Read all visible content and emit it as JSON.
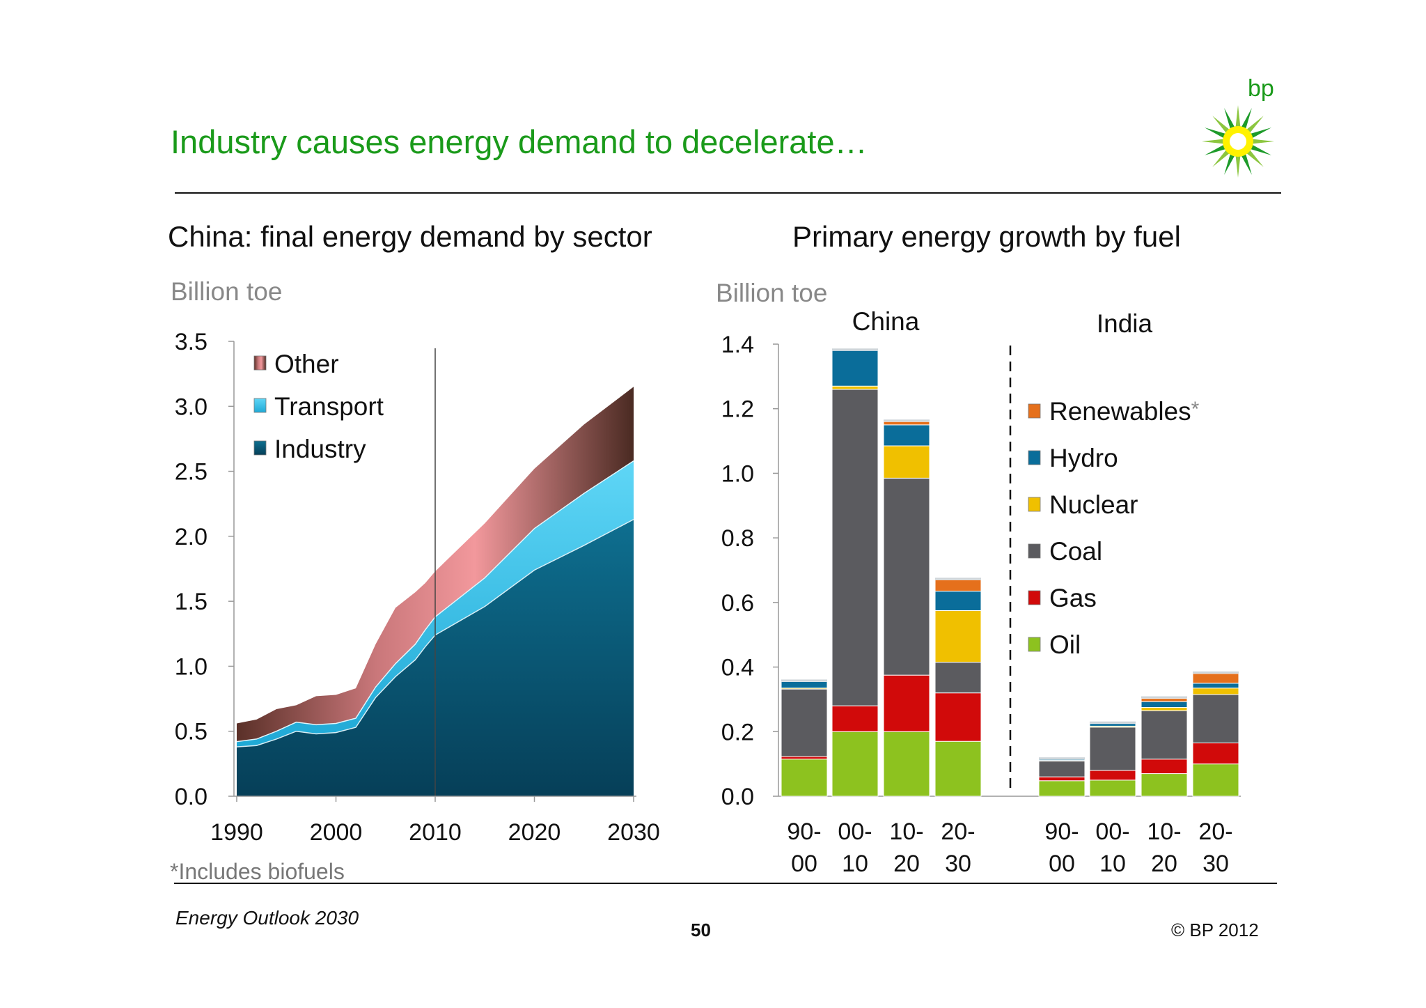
{
  "header": {
    "title": "Industry causes energy demand to decelerate…",
    "logo_text": "bp"
  },
  "footer": {
    "footnote": "*Includes biofuels",
    "source": "Energy Outlook 2030",
    "page_number": "50",
    "copyright": "© BP 2012"
  },
  "colors": {
    "title_green": "#1a9a1a",
    "industry": "#0b5b78",
    "transport": "#3cc8f0",
    "other": "#f2989c",
    "other_dark": "#5a3028",
    "oil": "#8dc21f",
    "gas": "#d10a0a",
    "coal": "#5b5b5f",
    "nuclear": "#f0c000",
    "hydro": "#0a6d9a",
    "renewables": "#e5701c"
  },
  "chart_data": [
    {
      "type": "area",
      "title": "China: final energy demand by sector",
      "ylabel": "Billion toe",
      "xlabel": "",
      "x": [
        1990,
        1992,
        1994,
        1996,
        1998,
        2000,
        2002,
        2004,
        2006,
        2008,
        2009,
        2010,
        2015,
        2020,
        2025,
        2030
      ],
      "xticks": [
        "1990",
        "2000",
        "2010",
        "2020",
        "2030"
      ],
      "yticks": [
        "0.0",
        "0.5",
        "1.0",
        "1.5",
        "2.0",
        "2.5",
        "3.0",
        "3.5"
      ],
      "ylim": [
        0,
        3.5
      ],
      "xlim": [
        1990,
        2030
      ],
      "divider_x": 2010,
      "stacked": true,
      "legend": "top-left",
      "series": [
        {
          "name": "Industry",
          "values": [
            0.38,
            0.39,
            0.44,
            0.5,
            0.48,
            0.49,
            0.53,
            0.76,
            0.92,
            1.05,
            1.15,
            1.24,
            1.46,
            1.74,
            1.93,
            2.13
          ]
        },
        {
          "name": "Transport",
          "values": [
            0.04,
            0.05,
            0.06,
            0.07,
            0.07,
            0.07,
            0.07,
            0.08,
            0.1,
            0.12,
            0.13,
            0.14,
            0.22,
            0.32,
            0.4,
            0.45
          ]
        },
        {
          "name": "Other",
          "values": [
            0.14,
            0.15,
            0.17,
            0.13,
            0.22,
            0.22,
            0.23,
            0.33,
            0.43,
            0.4,
            0.36,
            0.35,
            0.42,
            0.46,
            0.53,
            0.57
          ]
        }
      ]
    },
    {
      "type": "bar",
      "title": "Primary energy growth by fuel",
      "ylabel": "Billion toe",
      "xlabel": "",
      "ylim": [
        0,
        1.4
      ],
      "yticks": [
        "0.0",
        "0.2",
        "0.4",
        "0.6",
        "0.8",
        "1.0",
        "1.2",
        "1.4"
      ],
      "stacked": true,
      "legend": "right",
      "groups": [
        "China",
        "India"
      ],
      "categories": [
        {
          "top": "90-",
          "bottom": "00"
        },
        {
          "top": "00-",
          "bottom": "10"
        },
        {
          "top": "10-",
          "bottom": "20"
        },
        {
          "top": "20-",
          "bottom": "30"
        }
      ],
      "series": [
        {
          "name": "Oil",
          "china": [
            0.115,
            0.2,
            0.2,
            0.17
          ],
          "india": [
            0.048,
            0.05,
            0.07,
            0.1
          ]
        },
        {
          "name": "Gas",
          "china": [
            0.008,
            0.08,
            0.175,
            0.15
          ],
          "india": [
            0.012,
            0.03,
            0.045,
            0.065
          ]
        },
        {
          "name": "Coal",
          "china": [
            0.21,
            0.98,
            0.61,
            0.095
          ],
          "india": [
            0.05,
            0.135,
            0.15,
            0.15
          ]
        },
        {
          "name": "Nuclear",
          "china": [
            0.002,
            0.01,
            0.1,
            0.16
          ],
          "india": [
            0.002,
            0.002,
            0.01,
            0.02
          ]
        },
        {
          "name": "Hydro",
          "china": [
            0.02,
            0.11,
            0.065,
            0.06
          ],
          "india": [
            0.002,
            0.008,
            0.018,
            0.015
          ]
        },
        {
          "name": "Renewables*",
          "china": [
            0.0,
            0.0,
            0.01,
            0.035
          ],
          "india": [
            0.0,
            0.0,
            0.01,
            0.03
          ]
        }
      ]
    }
  ]
}
